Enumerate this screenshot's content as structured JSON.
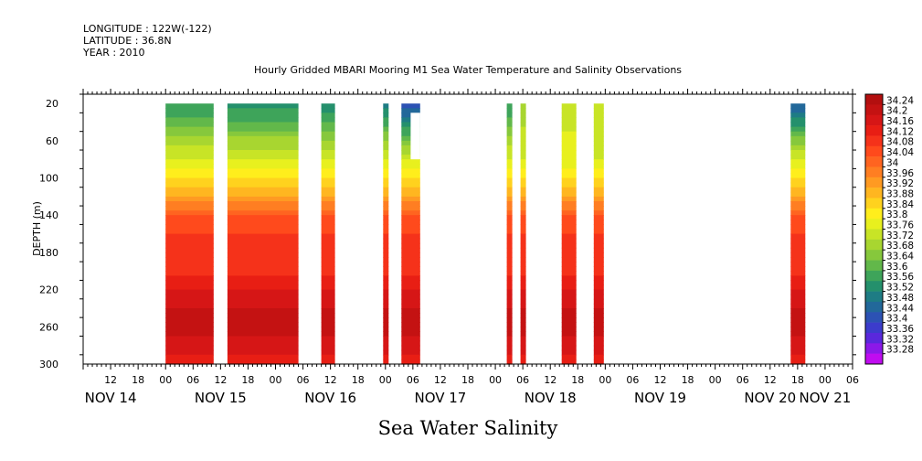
{
  "header": {
    "longitude": "LONGITUDE : 122W(-122)",
    "latitude": "LATITUDE : 36.8N",
    "year": "YEAR : 2010",
    "title": "Hourly Gridded MBARI Mooring M1 Sea Water Temperature and Salinity Observations"
  },
  "footer": {
    "variable_label": "Sea Water Salinity"
  },
  "chart_data": {
    "type": "heatmap",
    "title": "Hourly Gridded MBARI Mooring M1 Sea Water Temperature and Salinity Observations",
    "xlabel": "",
    "ylabel": "DEPTH (m)",
    "variable": "Sea Water Salinity",
    "x_unit": "hours since NOV 14 00:00, 2010",
    "xlim": [
      6,
      174
    ],
    "ylim": [
      300,
      10
    ],
    "y_ticks": [
      20,
      60,
      100,
      140,
      180,
      220,
      260,
      300
    ],
    "hour_tick_labels": [
      "12",
      "18",
      "00",
      "06",
      "12",
      "18",
      "00",
      "06",
      "12",
      "18",
      "00",
      "06",
      "12",
      "18",
      "00",
      "06",
      "12",
      "18",
      "00",
      "06",
      "12",
      "18",
      "00",
      "06",
      "12",
      "18",
      "00",
      "06"
    ],
    "hour_tick_values": [
      12,
      18,
      24,
      30,
      36,
      42,
      48,
      54,
      60,
      66,
      72,
      78,
      84,
      90,
      96,
      102,
      108,
      114,
      120,
      126,
      132,
      138,
      144,
      150,
      156,
      162,
      168,
      174
    ],
    "day_labels": [
      "NOV 14",
      "NOV 15",
      "NOV 16",
      "NOV 17",
      "NOV 18",
      "NOV 19",
      "NOV 20",
      "NOV 21"
    ],
    "day_label_hours": [
      12,
      36,
      60,
      84,
      108,
      132,
      156,
      168
    ],
    "colorbar_levels": [
      "34.24",
      "34.2",
      "34.16",
      "34.12",
      "34.08",
      "34.04",
      "34",
      "33.96",
      "33.92",
      "33.88",
      "33.84",
      "33.8",
      "33.76",
      "33.72",
      "33.68",
      "33.64",
      "33.6",
      "33.56",
      "33.52",
      "33.48",
      "33.44",
      "33.4",
      "33.36",
      "33.32",
      "33.28"
    ],
    "colorbar_colors": [
      "#b30f0f",
      "#c41212",
      "#d61616",
      "#e81e14",
      "#f5321a",
      "#ff4a1c",
      "#ff6420",
      "#ff7e22",
      "#ff9a22",
      "#ffb620",
      "#ffd21e",
      "#ffee1c",
      "#e8f01e",
      "#c8e426",
      "#a8d630",
      "#86c83c",
      "#62b84a",
      "#3ea45a",
      "#24906c",
      "#1e7c84",
      "#22689a",
      "#2c52b4",
      "#3c3ccc",
      "#5a28dc",
      "#8c18e8",
      "#c00cf0"
    ],
    "profile_depths": [
      20,
      40,
      60,
      80,
      100,
      120,
      140,
      160,
      180,
      200,
      220,
      240,
      260,
      280,
      300
    ],
    "profile_salinity": [
      33.56,
      33.62,
      33.7,
      33.76,
      33.84,
      33.92,
      34.04,
      34.08,
      34.09,
      34.1,
      34.16,
      34.2,
      34.22,
      34.18,
      34.14
    ],
    "observation_segments": [
      {
        "start_hour": 24.0,
        "end_hour": 34.5,
        "surface_salinity": 33.56,
        "top_depth": 20,
        "bottom_depth": 300
      },
      {
        "start_hour": 37.5,
        "end_hour": 53.0,
        "surface_salinity": 33.54,
        "top_depth": 20,
        "bottom_depth": 300
      },
      {
        "start_hour": 58.0,
        "end_hour": 61.0,
        "surface_salinity": 33.52,
        "top_depth": 20,
        "bottom_depth": 300
      },
      {
        "start_hour": 71.5,
        "end_hour": 72.7,
        "surface_salinity": 33.5,
        "top_depth": 20,
        "bottom_depth": 300
      },
      {
        "start_hour": 75.5,
        "end_hour": 79.6,
        "surface_salinity": 33.4,
        "top_depth": 20,
        "bottom_depth": 300
      },
      {
        "start_hour": 98.5,
        "end_hour": 99.7,
        "surface_salinity": 33.56,
        "top_depth": 20,
        "bottom_depth": 300
      },
      {
        "start_hour": 101.5,
        "end_hour": 102.7,
        "surface_salinity": 33.7,
        "top_depth": 20,
        "bottom_depth": 300
      },
      {
        "start_hour": 110.5,
        "end_hour": 113.7,
        "surface_salinity": 33.76,
        "top_depth": 20,
        "bottom_depth": 300
      },
      {
        "start_hour": 117.5,
        "end_hour": 119.7,
        "surface_salinity": 33.72,
        "top_depth": 20,
        "bottom_depth": 300
      },
      {
        "start_hour": 160.5,
        "end_hour": 163.7,
        "surface_salinity": 33.44,
        "top_depth": 20,
        "bottom_depth": 300
      }
    ],
    "missing_blocks": [
      {
        "start_hour": 77.5,
        "end_hour": 79.6,
        "top_depth": 30,
        "bottom_depth": 80
      }
    ],
    "grid": false,
    "legend": "right colorbar"
  }
}
